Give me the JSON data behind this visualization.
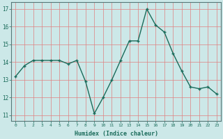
{
  "x": [
    0,
    1,
    2,
    3,
    4,
    5,
    6,
    7,
    8,
    9,
    10,
    11,
    12,
    13,
    14,
    15,
    16,
    17,
    18,
    19,
    20,
    21,
    22,
    23
  ],
  "y": [
    13.2,
    13.8,
    14.1,
    14.1,
    14.1,
    14.1,
    13.9,
    14.1,
    12.9,
    11.1,
    12.0,
    13.0,
    14.1,
    15.2,
    15.2,
    17.0,
    16.1,
    15.7,
    14.5,
    13.5,
    12.6,
    12.5,
    12.6,
    12.2
  ],
  "line_color": "#1a6b5a",
  "marker_color": "#1a6b5a",
  "bg_color": "#cce8e8",
  "grid_color": "#e08080",
  "xlabel": "Humidex (Indice chaleur)",
  "ylim": [
    10.7,
    17.4
  ],
  "xlim": [
    -0.5,
    23.5
  ],
  "yticks": [
    11,
    12,
    13,
    14,
    15,
    16,
    17
  ],
  "xticks": [
    0,
    1,
    2,
    3,
    4,
    5,
    6,
    7,
    8,
    9,
    10,
    11,
    12,
    13,
    14,
    15,
    16,
    17,
    18,
    19,
    20,
    21,
    22,
    23
  ],
  "xtick_labels": [
    "0",
    "1",
    "2",
    "3",
    "4",
    "5",
    "6",
    "7",
    "8",
    "9",
    "10",
    "11",
    "12",
    "13",
    "14",
    "15",
    "16",
    "17",
    "18",
    "19",
    "20",
    "21",
    "22",
    "23"
  ]
}
